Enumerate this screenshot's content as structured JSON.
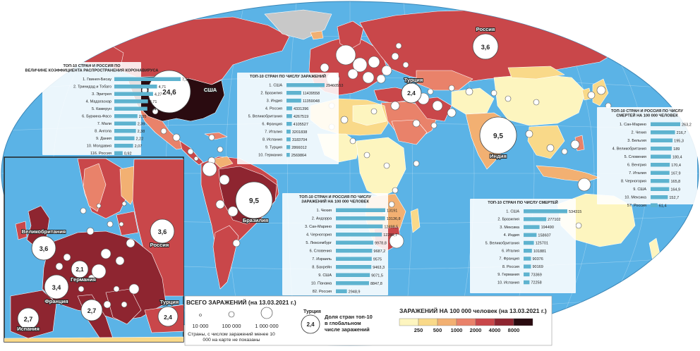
{
  "colors": {
    "ocean": "#5bb3e6",
    "no_data": "#c8c8c8",
    "bar": "#5eb3cf",
    "circle_fill": "#ffffff",
    "legend_colors": [
      "#fdf5bf",
      "#f9d989",
      "#f2b072",
      "#e9826a",
      "#c9474a",
      "#8e2530",
      "#2a0b10"
    ]
  },
  "choropleth_legend": {
    "title": "ЗАРАЖЕНИЙ НА 100 000 человек (на 13.03.2021 г.)",
    "ticks": [
      "250",
      "500",
      "1000",
      "2000",
      "4000",
      "8000"
    ]
  },
  "circle_legend": {
    "title": "ВСЕГО ЗАРАЖЕНИЙ (на 13.03.2021 г.)",
    "sizes": [
      "10 000",
      "100 000",
      "1 000 000"
    ],
    "note": "Страны, с числом заражений менее 10 000 на карте не показаны"
  },
  "share_legend": {
    "country": "Турция",
    "value": "2,4",
    "text": "Доля стран топ-10 в глобальном числе заражений"
  },
  "map_labels": {
    "usa": {
      "name": "США",
      "value": "24,6"
    },
    "russia": {
      "name": "Россия",
      "value": "3,6"
    },
    "turkey": {
      "name": "Турция",
      "value": "2,4"
    },
    "india": {
      "name": "Индия",
      "value": "9,5"
    },
    "brazil": {
      "name": "Бразилия",
      "value": "9,5"
    }
  },
  "inset_labels": {
    "uk": {
      "name": "Великобритания",
      "value": "3,6"
    },
    "russia": {
      "name": "Россия",
      "value": "3,6"
    },
    "germany": {
      "name": "Германия",
      "value": "2,1"
    },
    "france": {
      "name": "Франция",
      "value": "3,4"
    },
    "italy": {
      "value": "2,7"
    },
    "spain": {
      "name": "Испания",
      "value": "2,7"
    },
    "turkey": {
      "name": "Турция",
      "value": "2,4"
    }
  },
  "tables": [
    {
      "id": "spread-rate",
      "title": "ТОП-10 СТРАН И РОССИЯ ПО ВЕЛИЧИНЕ КОЭФФИЦИЕНТА РАСПРОСТРАНЕНИЯ КОРОНАВИРУСА",
      "rows": [
        {
          "label": "1. Гвинея-Бисау",
          "value": 7.31,
          "text": "7,31"
        },
        {
          "label": "2. Тринидад и Тобаго",
          "value": 4.71,
          "text": "4,71"
        },
        {
          "label": "3. Эритрея",
          "value": 4.27,
          "text": "4,27"
        },
        {
          "label": "4. Мадагаскар",
          "value": 3.71,
          "text": "3,71"
        },
        {
          "label": "5. Камерун",
          "value": 3.64,
          "text": "3,64"
        },
        {
          "label": "6. Буркина-Фасо",
          "value": 2.55,
          "text": "2,55"
        },
        {
          "label": "7. Мали",
          "value": 2.39,
          "text": "2,39"
        },
        {
          "label": "8. Ангола",
          "value": 2.38,
          "text": "2,38"
        },
        {
          "label": "9. Дания",
          "value": 2.22,
          "text": "2,22"
        },
        {
          "label": "10. Молдавия",
          "value": 2.07,
          "text": "2,07"
        },
        {
          "label": "116. Россия",
          "value": 0.92,
          "text": "0,92"
        }
      ]
    },
    {
      "id": "total-cases",
      "title": "ТОП-10 СТРАН ПО ЧИСЛУ ЗАРАЖЕНИЙ",
      "rows": [
        {
          "label": "1. США",
          "value": 29460553,
          "text": "29460553"
        },
        {
          "label": "2. Бразилия",
          "value": 11439558,
          "text": "11439558"
        },
        {
          "label": "3. Индия",
          "value": 11359048,
          "text": "11359048"
        },
        {
          "label": "4. Россия",
          "value": 4331396,
          "text": "4331396"
        },
        {
          "label": "5. Великобритания",
          "value": 4267519,
          "text": "4267519"
        },
        {
          "label": "6. Франция",
          "value": 4105527,
          "text": "4105527"
        },
        {
          "label": "7. Италия",
          "value": 3201838,
          "text": "3201838"
        },
        {
          "label": "8. Испания",
          "value": 3183704,
          "text": "3183704"
        },
        {
          "label": "9. Турция",
          "value": 2866012,
          "text": "2866012"
        },
        {
          "label": "10. Германия",
          "value": 2569864,
          "text": "2569864"
        }
      ]
    },
    {
      "id": "cases-per-100k",
      "title": "ТОП-10 СТРАН И РОССИЯ ПО ЧИСЛУ ЗАРАЖЕНИЙ НА 100 000 ЧЕЛОВЕК",
      "rows": [
        {
          "label": "1. Чехия",
          "value": 13191,
          "text": "13191"
        },
        {
          "label": "2. Андорра",
          "value": 13136.8,
          "text": "13136,8"
        },
        {
          "label": "3. Сан-Марино",
          "value": 12498.5,
          "text": "12498,5"
        },
        {
          "label": "4. Черногория",
          "value": 12286.7,
          "text": "12286,7"
        },
        {
          "label": "5. Люксембург",
          "value": 9978.8,
          "text": "9978,8"
        },
        {
          "label": "6. Словения",
          "value": 9687.2,
          "text": "9687,2"
        },
        {
          "label": "7. Израиль",
          "value": 9575,
          "text": "9575"
        },
        {
          "label": "8. Бахрейн",
          "value": 9463.3,
          "text": "9463,3"
        },
        {
          "label": "9. США",
          "value": 9071.5,
          "text": "9071,5"
        },
        {
          "label": "10. Панама",
          "value": 8847.8,
          "text": "8847,8"
        },
        {
          "label": "82. Россия",
          "value": 2948.9,
          "text": "2948,9"
        }
      ]
    },
    {
      "id": "total-deaths",
      "title": "ТОП-10 СТРАН ПО ЧИСЛУ СМЕРТЕЙ",
      "rows": [
        {
          "label": "1. США",
          "value": 534315,
          "text": "534315"
        },
        {
          "label": "2. Бразилия",
          "value": 277102,
          "text": "277102"
        },
        {
          "label": "3. Мексика",
          "value": 194490,
          "text": "194490"
        },
        {
          "label": "4. Индия",
          "value": 158607,
          "text": "158607"
        },
        {
          "label": "5. Великобритания",
          "value": 125701,
          "text": "125701"
        },
        {
          "label": "6. Италия",
          "value": 101881,
          "text": "101881"
        },
        {
          "label": "7. Франция",
          "value": 90376,
          "text": "90376"
        },
        {
          "label": "8. Россия",
          "value": 90169,
          "text": "90169"
        },
        {
          "label": "9. Германия",
          "value": 73369,
          "text": "73369"
        },
        {
          "label": "10. Испания",
          "value": 72258,
          "text": "72258"
        }
      ]
    },
    {
      "id": "deaths-per-100k",
      "title": "ТОП-10 СТРАН И РОССИЯ ПО ЧИСЛУ СМЕРТЕЙ НА 100 000 ЧЕЛОВЕК",
      "rows": [
        {
          "label": "1. Сан-Марино",
          "value": 263.2,
          "text": "263,2"
        },
        {
          "label": "2. Чехия",
          "value": 216.7,
          "text": "216,7"
        },
        {
          "label": "3. Бельгия",
          "value": 195.3,
          "text": "195,3"
        },
        {
          "label": "4. Великобритания",
          "value": 189,
          "text": "189"
        },
        {
          "label": "5. Словения",
          "value": 180.4,
          "text": "180,4"
        },
        {
          "label": "6. Венгрия",
          "value": 170.4,
          "text": "170,4"
        },
        {
          "label": "7. Италия",
          "value": 167.9,
          "text": "167,9"
        },
        {
          "label": "8. Черногория",
          "value": 165.8,
          "text": "165,8"
        },
        {
          "label": "9. США",
          "value": 164.9,
          "text": "164,9"
        },
        {
          "label": "10. Мексика",
          "value": 152.7,
          "text": "152,7"
        },
        {
          "label": "57. Россия",
          "value": 61.4,
          "text": "61,4"
        }
      ]
    }
  ]
}
